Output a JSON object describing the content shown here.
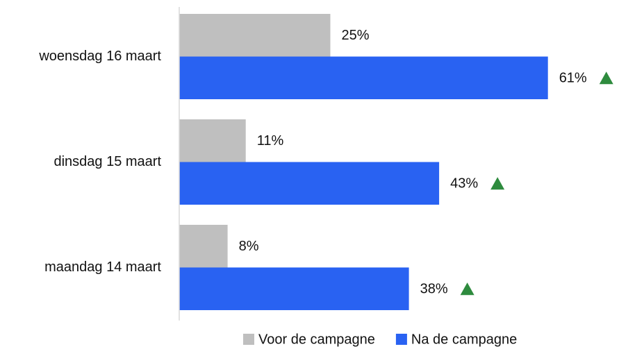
{
  "chart_data": {
    "type": "bar",
    "orientation": "horizontal",
    "categories": [
      "woensdag 16 maart",
      "dinsdag 15 maart",
      "maandag 14 maart"
    ],
    "series": [
      {
        "name": "Voor de campagne",
        "color": "#bfbfbf",
        "values": [
          25,
          11,
          8
        ],
        "value_labels": [
          "25%",
          "11%",
          "8%"
        ]
      },
      {
        "name": "Na de campagne",
        "color": "#2962f2",
        "values": [
          61,
          43,
          38
        ],
        "value_labels": [
          "61%",
          "43%",
          "38%"
        ]
      }
    ],
    "xlim": [
      0,
      70
    ],
    "legend": "bottom"
  }
}
